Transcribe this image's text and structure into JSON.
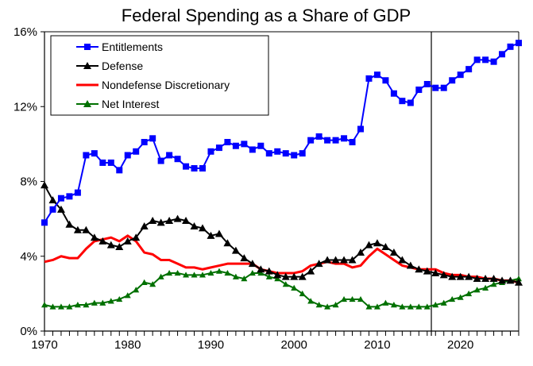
{
  "chart_data": {
    "type": "line",
    "title": "Federal Spending as a Share of GDP",
    "xlabel": "",
    "ylabel": "",
    "xlim": [
      1970,
      2027
    ],
    "ylim": [
      0,
      16
    ],
    "x_ticks": [
      "1970",
      "1980",
      "1990",
      "2000",
      "2010",
      "2020"
    ],
    "y_ticks": [
      "0%",
      "4%",
      "8%",
      "12%",
      "16%"
    ],
    "grid": false,
    "legend_position": "top-left",
    "vertical_marker_year": 2016.5,
    "x": [
      1970,
      1971,
      1972,
      1973,
      1974,
      1975,
      1976,
      1977,
      1978,
      1979,
      1980,
      1981,
      1982,
      1983,
      1984,
      1985,
      1986,
      1987,
      1988,
      1989,
      1990,
      1991,
      1992,
      1993,
      1994,
      1995,
      1996,
      1997,
      1998,
      1999,
      2000,
      2001,
      2002,
      2003,
      2004,
      2005,
      2006,
      2007,
      2008,
      2009,
      2010,
      2011,
      2012,
      2013,
      2014,
      2015,
      2016,
      2017,
      2018,
      2019,
      2020,
      2021,
      2022,
      2023,
      2024,
      2025,
      2026,
      2027
    ],
    "series": [
      {
        "name": "Entitlements",
        "color": "#0000FF",
        "marker": "square",
        "values": [
          5.8,
          6.5,
          7.1,
          7.2,
          7.4,
          9.4,
          9.5,
          9.0,
          9.0,
          8.6,
          9.4,
          9.6,
          10.1,
          10.3,
          9.1,
          9.4,
          9.2,
          8.8,
          8.7,
          8.7,
          9.6,
          9.8,
          10.1,
          9.9,
          10.0,
          9.7,
          9.9,
          9.5,
          9.6,
          9.5,
          9.4,
          9.5,
          10.2,
          10.4,
          10.2,
          10.2,
          10.3,
          10.1,
          10.8,
          13.5,
          13.7,
          13.4,
          12.7,
          12.3,
          12.2,
          12.9,
          13.2,
          13.0,
          13.0,
          13.4,
          13.7,
          14.0,
          14.5,
          14.5,
          14.4,
          14.8,
          15.2,
          15.4
        ]
      },
      {
        "name": "Defense",
        "color": "#000000",
        "marker": "triangle",
        "values": [
          7.8,
          7.0,
          6.5,
          5.7,
          5.4,
          5.4,
          5.0,
          4.8,
          4.6,
          4.5,
          4.8,
          5.0,
          5.6,
          5.9,
          5.8,
          5.9,
          6.0,
          5.9,
          5.6,
          5.5,
          5.1,
          5.2,
          4.7,
          4.3,
          3.9,
          3.6,
          3.3,
          3.2,
          3.0,
          2.9,
          2.9,
          2.9,
          3.2,
          3.6,
          3.8,
          3.8,
          3.8,
          3.8,
          4.2,
          4.6,
          4.7,
          4.5,
          4.2,
          3.8,
          3.5,
          3.3,
          3.2,
          3.1,
          3.0,
          2.9,
          2.9,
          2.9,
          2.8,
          2.8,
          2.8,
          2.7,
          2.7,
          2.6
        ]
      },
      {
        "name": "Nondefense Discretionary",
        "color": "#FF0000",
        "marker": "none",
        "values": [
          3.7,
          3.8,
          4.0,
          3.9,
          3.9,
          4.4,
          4.8,
          4.9,
          5.0,
          4.8,
          5.1,
          4.8,
          4.2,
          4.1,
          3.8,
          3.8,
          3.6,
          3.4,
          3.4,
          3.3,
          3.4,
          3.5,
          3.6,
          3.6,
          3.6,
          3.6,
          3.3,
          3.2,
          3.1,
          3.1,
          3.1,
          3.2,
          3.5,
          3.6,
          3.7,
          3.6,
          3.6,
          3.4,
          3.5,
          4.0,
          4.4,
          4.1,
          3.8,
          3.5,
          3.4,
          3.3,
          3.3,
          3.3,
          3.1,
          3.0,
          3.0,
          2.9,
          2.9,
          2.8,
          2.8,
          2.7,
          2.7,
          2.6
        ]
      },
      {
        "name": "Net Interest",
        "color": "#007000",
        "marker": "triangle",
        "values": [
          1.4,
          1.3,
          1.3,
          1.3,
          1.4,
          1.4,
          1.5,
          1.5,
          1.6,
          1.7,
          1.9,
          2.2,
          2.6,
          2.5,
          2.9,
          3.1,
          3.1,
          3.0,
          3.0,
          3.0,
          3.1,
          3.2,
          3.1,
          2.9,
          2.8,
          3.1,
          3.1,
          2.9,
          2.8,
          2.5,
          2.3,
          2.0,
          1.6,
          1.4,
          1.3,
          1.4,
          1.7,
          1.7,
          1.7,
          1.3,
          1.3,
          1.5,
          1.4,
          1.3,
          1.3,
          1.3,
          1.3,
          1.4,
          1.5,
          1.7,
          1.8,
          2.0,
          2.2,
          2.3,
          2.5,
          2.6,
          2.7,
          2.8
        ]
      }
    ]
  }
}
